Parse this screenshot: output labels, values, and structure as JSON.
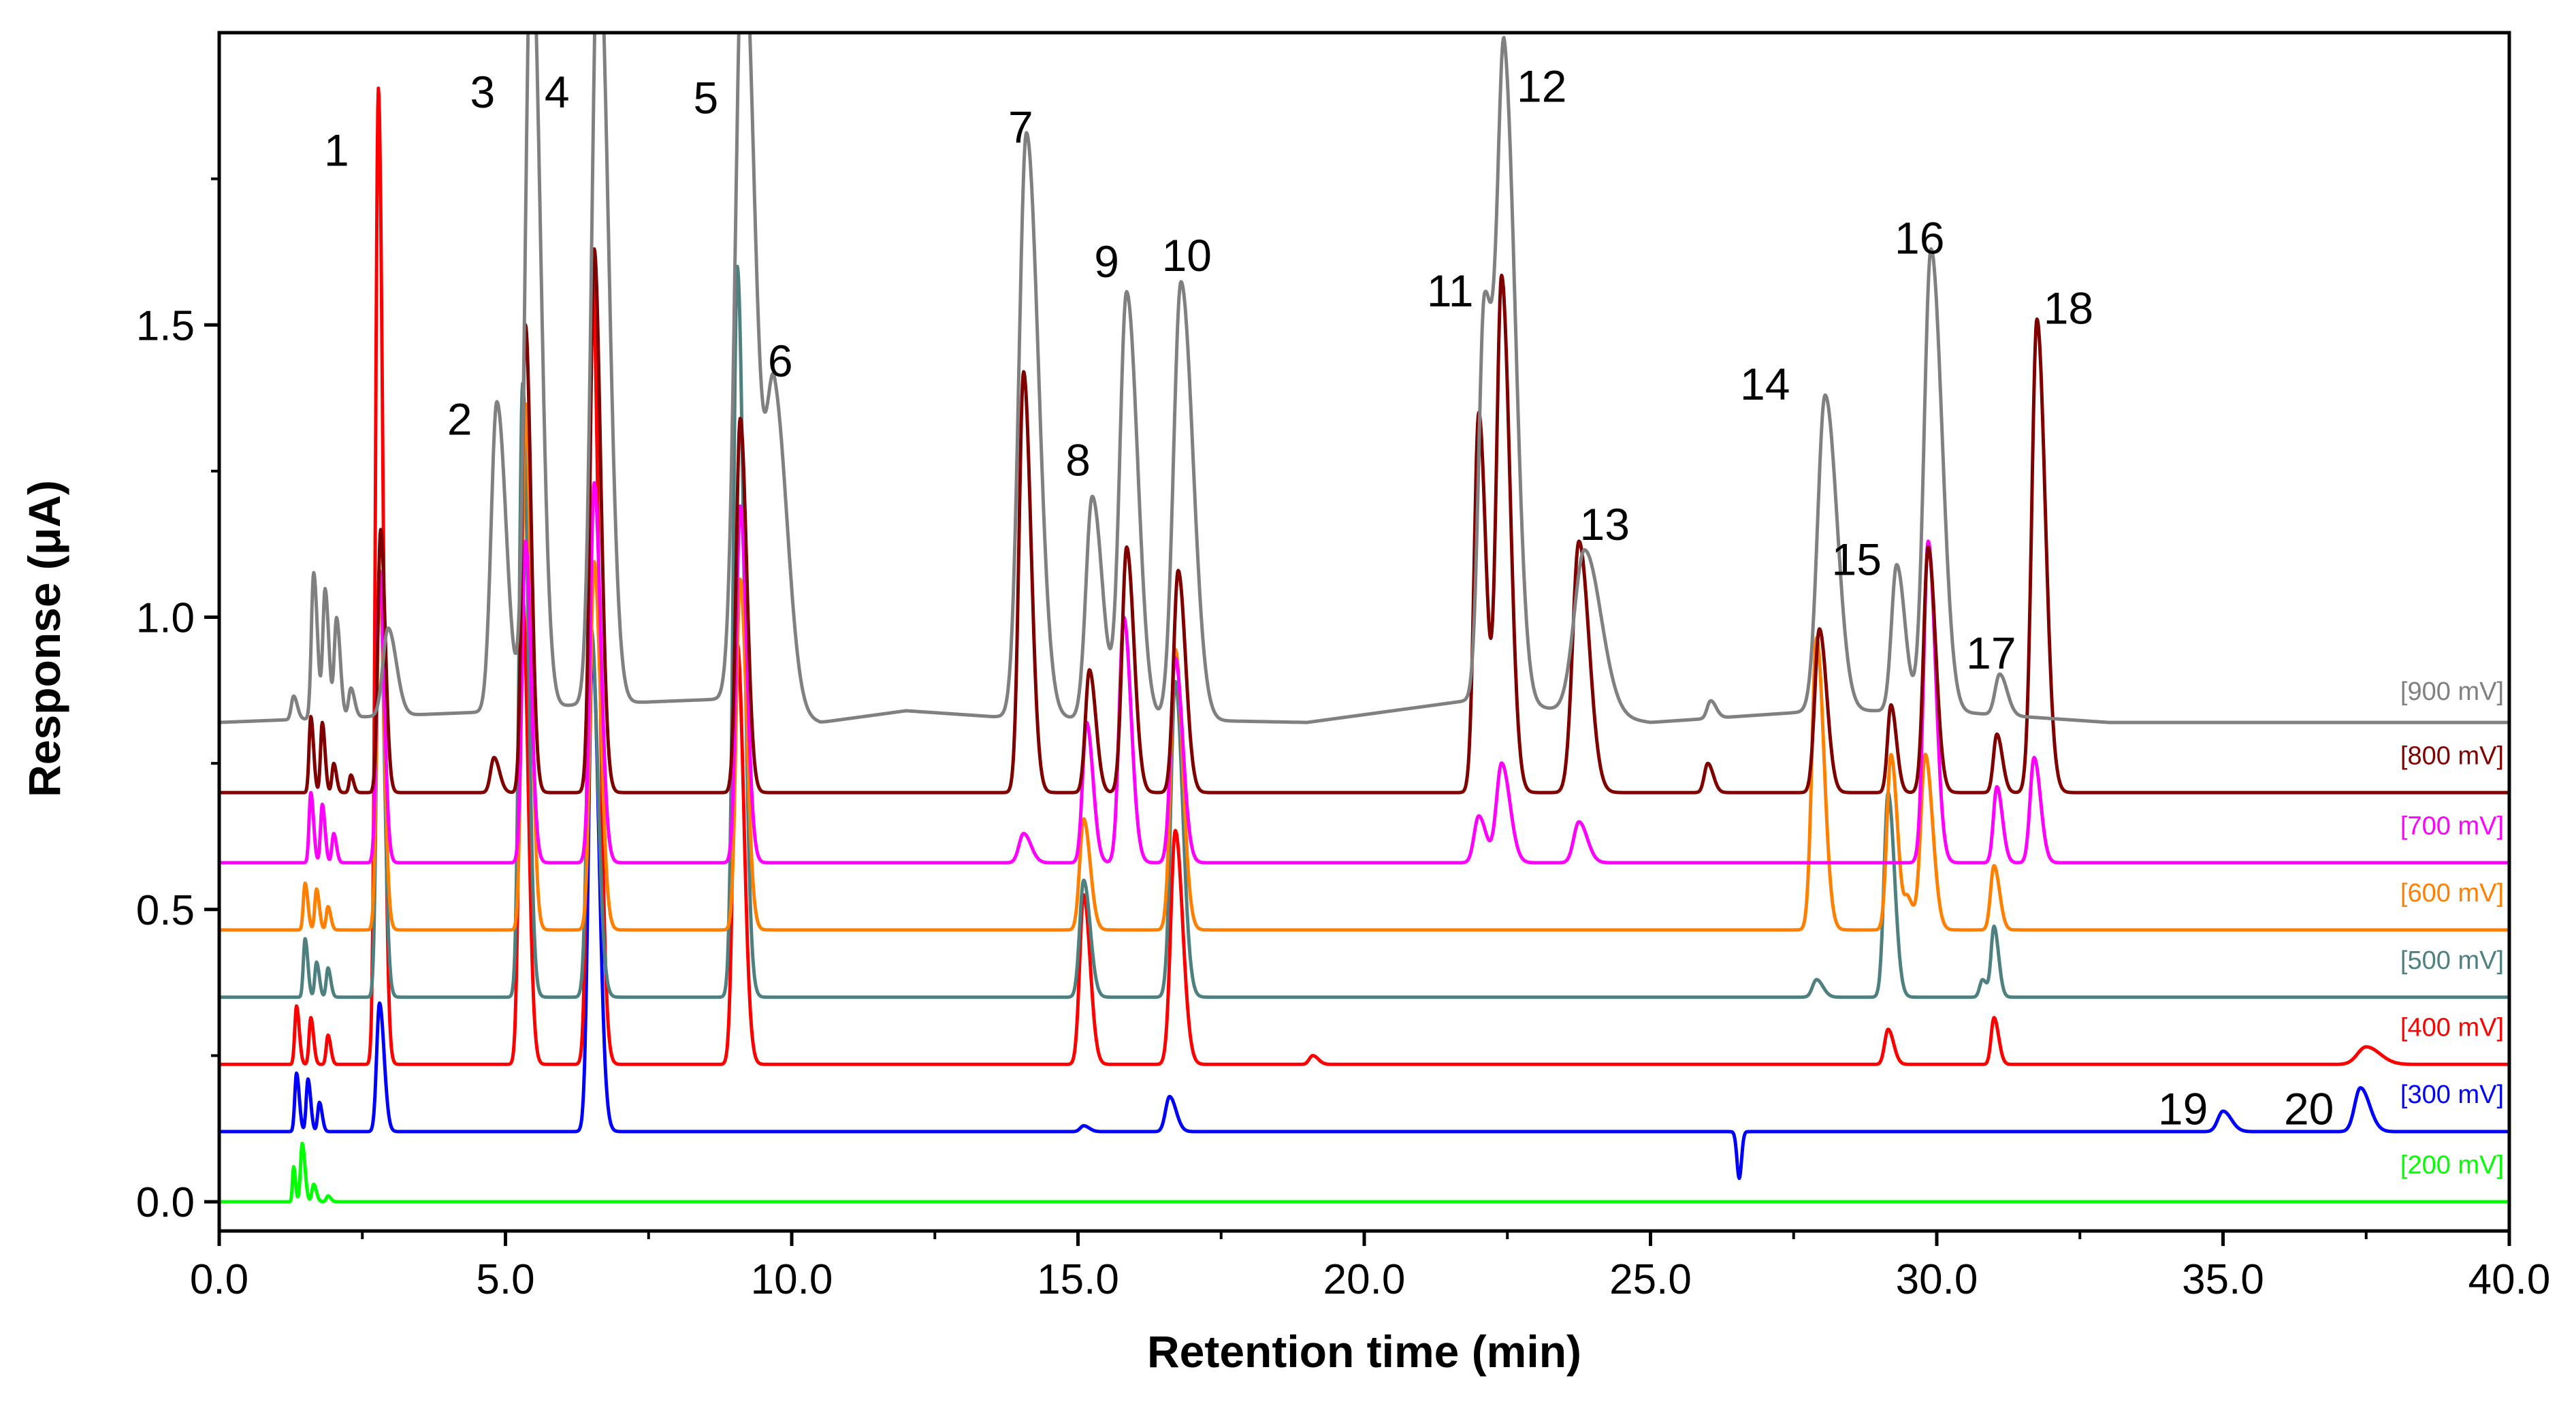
{
  "chart_data": {
    "type": "line",
    "title": "",
    "xlabel": "Retention time (min)",
    "ylabel": "Response (μA)",
    "xlim": [
      0,
      40
    ],
    "ylim": [
      -0.05,
      2.0
    ],
    "x_ticks": [
      0,
      5,
      10,
      15,
      20,
      25,
      30,
      35,
      40
    ],
    "x_tick_labels": [
      "0.0",
      "5.0",
      "10.0",
      "15.0",
      "20.0",
      "25.0",
      "30.0",
      "35.0",
      "40.0"
    ],
    "y_ticks": [
      0.0,
      0.5,
      1.0,
      1.5
    ],
    "y_tick_labels": [
      "0.0",
      "0.5",
      "1.0",
      "1.5"
    ],
    "grid": false,
    "series": [
      {
        "name": "[900 mV]",
        "color": "#808080",
        "baseline": 0.82,
        "drift": [
          [
            0,
            0.82
          ],
          [
            5.2,
            0.84
          ],
          [
            6.2,
            0.85
          ],
          [
            8.8,
            0.86
          ],
          [
            10.5,
            0.82
          ],
          [
            12,
            0.84
          ],
          [
            13.5,
            0.83
          ],
          [
            19,
            0.82
          ],
          [
            22,
            0.86
          ],
          [
            25,
            0.82
          ],
          [
            28,
            0.84
          ],
          [
            30,
            0.84
          ],
          [
            33,
            0.82
          ],
          [
            40,
            0.82
          ]
        ],
        "peaks": [
          [
            1.3,
            0.04,
            0.04
          ],
          [
            1.65,
            0.25,
            0.04
          ],
          [
            1.85,
            0.22,
            0.04
          ],
          [
            2.05,
            0.17,
            0.04
          ],
          [
            2.3,
            0.05,
            0.04
          ],
          [
            2.95,
            0.15,
            0.09
          ],
          [
            4.85,
            0.53,
            0.1
          ],
          [
            5.45,
            1.35,
            0.1
          ],
          [
            6.62,
            1.35,
            0.11
          ],
          [
            9.15,
            1.35,
            0.13
          ],
          [
            9.7,
            0.53,
            0.14
          ],
          [
            14.1,
            1.0,
            0.13
          ],
          [
            15.25,
            0.38,
            0.11
          ],
          [
            15.85,
            0.73,
            0.12
          ],
          [
            16.8,
            0.75,
            0.13
          ],
          [
            22.1,
            0.68,
            0.1
          ],
          [
            22.45,
            1.07,
            0.12
          ],
          [
            23.85,
            0.28,
            0.18
          ],
          [
            26.05,
            0.03,
            0.06
          ],
          [
            28.05,
            0.54,
            0.13
          ],
          [
            29.3,
            0.25,
            0.09
          ],
          [
            29.9,
            0.79,
            0.12
          ],
          [
            31.1,
            0.07,
            0.08
          ],
          [
            32.0,
            0.0,
            0.1
          ]
        ],
        "label_y": 0.875
      },
      {
        "name": "[800 mV]",
        "color": "#800000",
        "baseline": 0.7,
        "drift": [
          [
            0,
            0.7
          ],
          [
            40,
            0.7
          ]
        ],
        "peaks": [
          [
            1.6,
            0.13,
            0.03
          ],
          [
            1.8,
            0.12,
            0.03
          ],
          [
            2.0,
            0.05,
            0.03
          ],
          [
            2.3,
            0.03,
            0.03
          ],
          [
            2.82,
            0.45,
            0.05
          ],
          [
            4.8,
            0.06,
            0.06
          ],
          [
            5.35,
            0.8,
            0.06
          ],
          [
            6.55,
            0.93,
            0.07
          ],
          [
            9.1,
            0.64,
            0.07
          ],
          [
            14.05,
            0.72,
            0.08
          ],
          [
            15.2,
            0.21,
            0.07
          ],
          [
            15.85,
            0.42,
            0.08
          ],
          [
            16.75,
            0.38,
            0.08
          ],
          [
            22.0,
            0.65,
            0.08
          ],
          [
            22.4,
            0.88,
            0.09
          ],
          [
            23.75,
            0.43,
            0.11
          ],
          [
            26.0,
            0.05,
            0.06
          ],
          [
            27.95,
            0.28,
            0.08
          ],
          [
            29.2,
            0.15,
            0.06
          ],
          [
            29.85,
            0.42,
            0.08
          ],
          [
            31.05,
            0.1,
            0.06
          ],
          [
            31.75,
            0.81,
            0.09
          ]
        ],
        "label_y": 0.765
      },
      {
        "name": "[700 mV]",
        "color": "#ff00ff",
        "baseline": 0.58,
        "drift": [
          [
            0,
            0.58
          ],
          [
            40,
            0.58
          ]
        ],
        "peaks": [
          [
            1.6,
            0.12,
            0.03
          ],
          [
            1.8,
            0.1,
            0.03
          ],
          [
            2.0,
            0.05,
            0.03
          ],
          [
            2.8,
            0.5,
            0.05
          ],
          [
            5.35,
            0.55,
            0.06
          ],
          [
            6.55,
            0.65,
            0.07
          ],
          [
            9.1,
            0.61,
            0.07
          ],
          [
            14.05,
            0.05,
            0.08
          ],
          [
            15.15,
            0.24,
            0.07
          ],
          [
            15.8,
            0.42,
            0.08
          ],
          [
            16.7,
            0.35,
            0.08
          ],
          [
            22.0,
            0.08,
            0.08
          ],
          [
            22.4,
            0.17,
            0.09
          ],
          [
            23.75,
            0.07,
            0.09
          ],
          [
            29.85,
            0.55,
            0.08
          ],
          [
            31.05,
            0.13,
            0.06
          ],
          [
            31.7,
            0.18,
            0.07
          ]
        ],
        "label_y": 0.645
      },
      {
        "name": "[600 mV]",
        "color": "#ff8000",
        "baseline": 0.465,
        "drift": [
          [
            0,
            0.465
          ],
          [
            40,
            0.465
          ]
        ],
        "peaks": [
          [
            1.5,
            0.08,
            0.03
          ],
          [
            1.7,
            0.07,
            0.03
          ],
          [
            1.9,
            0.04,
            0.03
          ],
          [
            2.8,
            0.6,
            0.05
          ],
          [
            5.35,
            0.9,
            0.06
          ],
          [
            6.55,
            0.63,
            0.07
          ],
          [
            9.1,
            0.6,
            0.07
          ],
          [
            15.1,
            0.19,
            0.07
          ],
          [
            16.7,
            0.48,
            0.08
          ],
          [
            27.9,
            0.5,
            0.08
          ],
          [
            29.2,
            0.3,
            0.07
          ],
          [
            29.5,
            0.05,
            0.06
          ],
          [
            29.8,
            0.3,
            0.08
          ],
          [
            31.0,
            0.11,
            0.06
          ]
        ],
        "label_y": 0.53
      },
      {
        "name": "[500 mV]",
        "color": "#4f8080",
        "baseline": 0.35,
        "drift": [
          [
            0,
            0.35
          ],
          [
            40,
            0.35
          ]
        ],
        "peaks": [
          [
            1.5,
            0.1,
            0.03
          ],
          [
            1.7,
            0.06,
            0.03
          ],
          [
            1.9,
            0.05,
            0.03
          ],
          [
            2.8,
            0.73,
            0.05
          ],
          [
            5.3,
            1.05,
            0.06
          ],
          [
            6.5,
            0.63,
            0.07
          ],
          [
            9.05,
            1.25,
            0.07
          ],
          [
            15.1,
            0.2,
            0.07
          ],
          [
            16.7,
            0.54,
            0.08
          ],
          [
            27.9,
            0.03,
            0.07
          ],
          [
            29.15,
            0.35,
            0.07
          ],
          [
            30.8,
            0.03,
            0.05
          ],
          [
            31.0,
            0.12,
            0.05
          ]
        ],
        "label_y": 0.415
      },
      {
        "name": "[400 mV]",
        "color": "#ff0000",
        "baseline": 0.235,
        "drift": [
          [
            0,
            0.235
          ],
          [
            40,
            0.235
          ]
        ],
        "peaks": [
          [
            1.35,
            0.1,
            0.03
          ],
          [
            1.6,
            0.08,
            0.03
          ],
          [
            1.9,
            0.05,
            0.03
          ],
          [
            2.78,
            1.67,
            0.05
          ],
          [
            5.3,
            0.8,
            0.06
          ],
          [
            6.52,
            1.35,
            0.07
          ],
          [
            9.05,
            0.72,
            0.07
          ],
          [
            15.1,
            0.29,
            0.07
          ],
          [
            16.7,
            0.4,
            0.08
          ],
          [
            19.1,
            0.015,
            0.06
          ],
          [
            29.15,
            0.06,
            0.06
          ],
          [
            31.0,
            0.08,
            0.05
          ],
          [
            37.5,
            0.03,
            0.15
          ]
        ],
        "label_y": 0.3
      },
      {
        "name": "[300 mV]",
        "color": "#0000ff",
        "baseline": 0.12,
        "drift": [
          [
            0,
            0.12
          ],
          [
            40,
            0.12
          ]
        ],
        "peaks": [
          [
            1.35,
            0.1,
            0.03
          ],
          [
            1.55,
            0.09,
            0.03
          ],
          [
            1.75,
            0.05,
            0.03
          ],
          [
            2.8,
            0.22,
            0.05
          ],
          [
            6.52,
            0.82,
            0.07
          ],
          [
            15.1,
            0.01,
            0.06
          ],
          [
            16.6,
            0.06,
            0.07
          ],
          [
            35.0,
            0.035,
            0.09
          ],
          [
            37.4,
            0.075,
            0.1
          ]
        ],
        "dip": [
          26.55,
          -0.08,
          0.04
        ],
        "label_y": 0.185
      },
      {
        "name": "[200 mV]",
        "color": "#00ff00",
        "baseline": 0.0,
        "drift": [
          [
            0,
            0.0
          ],
          [
            40,
            0.0
          ]
        ],
        "peaks": [
          [
            1.3,
            0.06,
            0.02
          ],
          [
            1.45,
            0.1,
            0.03
          ],
          [
            1.65,
            0.03,
            0.03
          ],
          [
            1.9,
            0.01,
            0.03
          ]
        ],
        "label_y": 0.065
      }
    ],
    "annotations": [
      {
        "text": "1",
        "x": 2.05,
        "y": 1.8
      },
      {
        "text": "2",
        "x": 4.2,
        "y": 1.34
      },
      {
        "text": "3",
        "x": 4.6,
        "y": 1.9
      },
      {
        "text": "4",
        "x": 5.9,
        "y": 1.9
      },
      {
        "text": "5",
        "x": 8.5,
        "y": 1.89
      },
      {
        "text": "6",
        "x": 9.8,
        "y": 1.44
      },
      {
        "text": "7",
        "x": 14.0,
        "y": 1.84
      },
      {
        "text": "8",
        "x": 15.0,
        "y": 1.27
      },
      {
        "text": "9",
        "x": 15.5,
        "y": 1.61
      },
      {
        "text": "10",
        "x": 16.9,
        "y": 1.62
      },
      {
        "text": "11",
        "x": 21.5,
        "y": 1.56
      },
      {
        "text": "12",
        "x": 23.1,
        "y": 1.91
      },
      {
        "text": "13",
        "x": 24.2,
        "y": 1.16
      },
      {
        "text": "14",
        "x": 27.0,
        "y": 1.4
      },
      {
        "text": "15",
        "x": 28.6,
        "y": 1.1
      },
      {
        "text": "16",
        "x": 29.7,
        "y": 1.65
      },
      {
        "text": "17",
        "x": 30.95,
        "y": 0.94
      },
      {
        "text": "18",
        "x": 32.3,
        "y": 1.53
      },
      {
        "text": "19",
        "x": 34.3,
        "y": 0.16
      },
      {
        "text": "20",
        "x": 36.5,
        "y": 0.16
      }
    ]
  }
}
